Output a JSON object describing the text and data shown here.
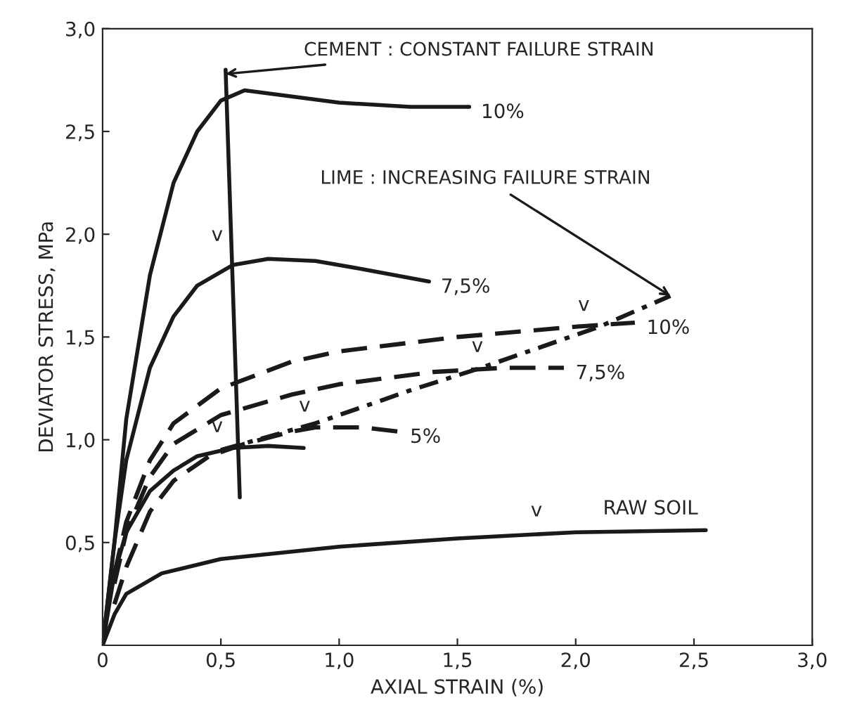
{
  "chart_data": {
    "type": "line",
    "xlabel": "AXIAL STRAIN (%)",
    "ylabel": "DEVIATOR STRESS, MPa",
    "xlim": [
      0,
      3.0
    ],
    "ylim": [
      0,
      3.0
    ],
    "xticks": [
      {
        "value": 0,
        "label": "0"
      },
      {
        "value": 0.5,
        "label": "0,5"
      },
      {
        "value": 1.0,
        "label": "1,0"
      },
      {
        "value": 1.5,
        "label": "1,5"
      },
      {
        "value": 2.0,
        "label": "2,0"
      },
      {
        "value": 2.5,
        "label": "2,5"
      },
      {
        "value": 3.0,
        "label": "3,0"
      }
    ],
    "yticks": [
      {
        "value": 0.5,
        "label": "0,5"
      },
      {
        "value": 1.0,
        "label": "1,0"
      },
      {
        "value": 1.5,
        "label": "1,5"
      },
      {
        "value": 2.0,
        "label": "2,0"
      },
      {
        "value": 2.5,
        "label": "2,5"
      },
      {
        "value": 3.0,
        "label": "3,0"
      }
    ],
    "grid": false,
    "legend": false,
    "marker": "none",
    "series": [
      {
        "name": "10%",
        "color": "#1a1a1a",
        "line_style": "solid",
        "x": [
          0,
          0.05,
          0.1,
          0.2,
          0.3,
          0.4,
          0.5,
          0.6,
          0.8,
          1.0,
          1.3,
          1.55
        ],
        "values": [
          0,
          0.5,
          1.1,
          1.8,
          2.25,
          2.5,
          2.65,
          2.7,
          2.67,
          2.64,
          2.62,
          2.62
        ]
      },
      {
        "name": "7,5%",
        "color": "#1a1a1a",
        "line_style": "solid",
        "x": [
          0,
          0.05,
          0.1,
          0.2,
          0.3,
          0.4,
          0.55,
          0.7,
          0.9,
          1.1,
          1.38
        ],
        "values": [
          0,
          0.5,
          0.9,
          1.35,
          1.6,
          1.75,
          1.85,
          1.88,
          1.87,
          1.83,
          1.77
        ]
      },
      {
        "color": "#1a1a1a",
        "line_style": "solid",
        "x": [
          0,
          0.05,
          0.1,
          0.2,
          0.3,
          0.4,
          0.55,
          0.7,
          0.85
        ],
        "values": [
          0,
          0.35,
          0.55,
          0.75,
          0.85,
          0.92,
          0.96,
          0.97,
          0.96
        ]
      },
      {
        "name": "RAW SOIL",
        "color": "#1a1a1a",
        "line_style": "solid",
        "x": [
          0,
          0.05,
          0.1,
          0.25,
          0.5,
          1.0,
          1.5,
          2.0,
          2.55
        ],
        "values": [
          0,
          0.15,
          0.25,
          0.35,
          0.42,
          0.48,
          0.52,
          0.55,
          0.56
        ]
      },
      {
        "name": "10%",
        "color": "#1a1a1a",
        "line_style": "dashed",
        "x": [
          0.05,
          0.1,
          0.2,
          0.3,
          0.5,
          0.8,
          1.0,
          1.5,
          2.0,
          2.25
        ],
        "values": [
          0.35,
          0.6,
          0.9,
          1.08,
          1.25,
          1.38,
          1.43,
          1.5,
          1.55,
          1.57
        ]
      },
      {
        "name": "7,5%",
        "color": "#1a1a1a",
        "line_style": "dashed",
        "x": [
          0.05,
          0.1,
          0.2,
          0.3,
          0.5,
          0.8,
          1.0,
          1.4,
          1.7,
          1.95
        ],
        "values": [
          0.3,
          0.55,
          0.82,
          0.98,
          1.12,
          1.22,
          1.27,
          1.33,
          1.35,
          1.35
        ]
      },
      {
        "name": "5%",
        "color": "#1a1a1a",
        "line_style": "dashed",
        "x": [
          0.05,
          0.1,
          0.2,
          0.3,
          0.45,
          0.6,
          0.8,
          0.9,
          1.1,
          1.25
        ],
        "values": [
          0.2,
          0.38,
          0.65,
          0.8,
          0.92,
          0.98,
          1.04,
          1.06,
          1.06,
          1.04
        ]
      },
      {
        "color": "#1a1a1a",
        "line_style": "dashdot",
        "x": [
          0.5,
          0.9,
          1.3,
          1.6,
          2.1,
          2.4
        ],
        "values": [
          0.95,
          1.08,
          1.24,
          1.35,
          1.55,
          1.7
        ]
      },
      {
        "color": "#1a1a1a",
        "line_style": "solid",
        "x": [
          0.52,
          0.58
        ],
        "values": [
          2.8,
          0.72
        ]
      }
    ],
    "annotations": [
      {
        "text": "CEMENT : CONSTANT FAILURE STRAIN",
        "x": 0.52,
        "y": 2.78
      },
      {
        "text": "LIME : INCREASING FAILURE STRAIN",
        "x": 2.4,
        "y": 1.7
      },
      {
        "text": "v",
        "x": 0.55,
        "y": 1.9
      },
      {
        "text": "v",
        "x": 0.55,
        "y": 0.97
      },
      {
        "text": "v",
        "x": 0.92,
        "y": 1.07
      },
      {
        "text": "v",
        "x": 1.65,
        "y": 1.36
      },
      {
        "text": "v",
        "x": 2.1,
        "y": 1.56
      },
      {
        "text": "v",
        "x": 1.9,
        "y": 0.56
      }
    ]
  }
}
